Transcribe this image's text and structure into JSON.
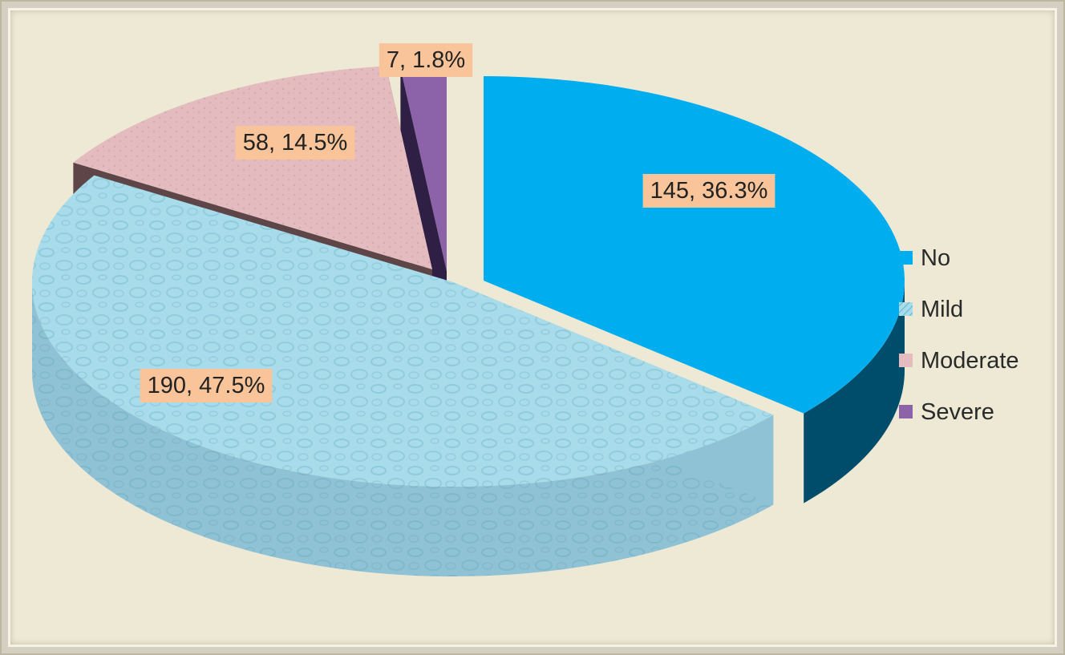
{
  "chart_data": {
    "type": "pie",
    "style": "3d-exploded",
    "categories": [
      "No",
      "Mild",
      "Moderate",
      "Severe"
    ],
    "values": [
      145,
      190,
      58,
      7
    ],
    "percents": [
      36.3,
      47.5,
      14.5,
      1.8
    ],
    "data_labels": [
      "145, 36.3%",
      "190, 47.5%",
      "58, 14.5%",
      "7, 1.8%"
    ],
    "colors": {
      "No": "#00aeef",
      "Mild": "#a8dcea",
      "Moderate": "#e4bcc0",
      "Severe": "#8c63a8"
    },
    "legend": {
      "position": "right",
      "items": [
        "No",
        "Mild",
        "Moderate",
        "Severe"
      ]
    },
    "title": "",
    "data_label_background": "#f9c49a"
  }
}
